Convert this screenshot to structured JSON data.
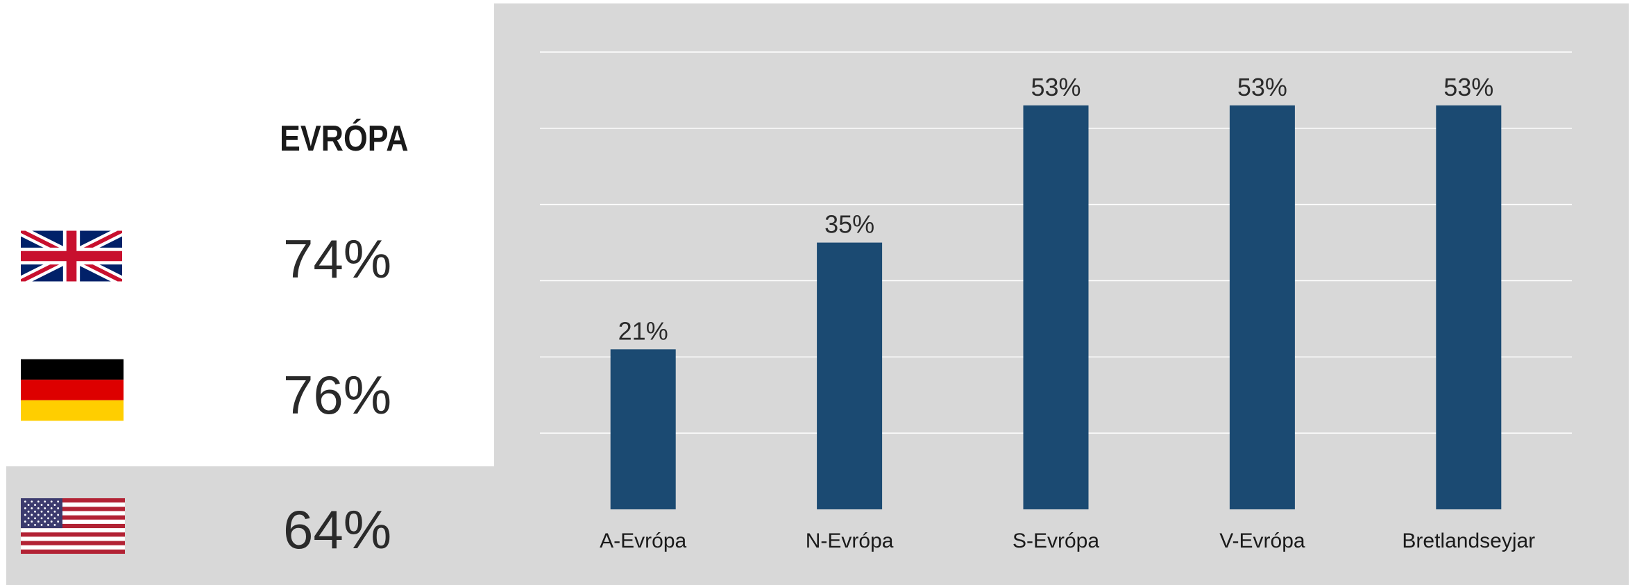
{
  "left_panel": {
    "heading": "EVRÓPA",
    "countries": [
      {
        "flag_icon": "uk-flag-icon",
        "value": "74%"
      },
      {
        "flag_icon": "germany-flag-icon",
        "value": "76%"
      },
      {
        "flag_icon": "usa-flag-icon",
        "value": "64%"
      }
    ]
  },
  "colors": {
    "bar": "#1b4a72",
    "panel_background": "#d8d8d8",
    "gridline": "#ffffff"
  },
  "chart_data": {
    "type": "bar",
    "categories": [
      "A-Evrópa",
      "N-Evrópa",
      "S-Evrópa",
      "V-Evrópa",
      "Bretlandseyjar"
    ],
    "values": [
      21,
      35,
      53,
      53,
      53
    ],
    "value_labels": [
      "21%",
      "35%",
      "53%",
      "53%",
      "53%"
    ],
    "ylim": [
      0,
      60
    ],
    "grid": true,
    "y_axis_labels_shown": false
  }
}
